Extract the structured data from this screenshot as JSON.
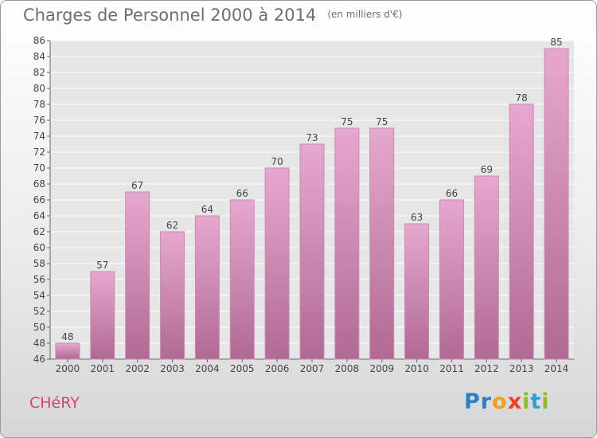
{
  "chart_data": {
    "type": "bar",
    "title": "Charges de Personnel 2000 à 2014",
    "subtitle": "(en milliers d'€)",
    "categories": [
      "2000",
      "2001",
      "2002",
      "2003",
      "2004",
      "2005",
      "2006",
      "2007",
      "2008",
      "2009",
      "2010",
      "2011",
      "2012",
      "2013",
      "2014"
    ],
    "values": [
      48,
      57,
      67,
      62,
      64,
      66,
      70,
      73,
      75,
      75,
      63,
      66,
      69,
      78,
      85
    ],
    "ylim": [
      46,
      86
    ],
    "yticks": [
      46,
      48,
      50,
      52,
      54,
      56,
      58,
      60,
      62,
      64,
      66,
      68,
      70,
      72,
      74,
      76,
      78,
      80,
      82,
      84,
      86
    ],
    "grid": true,
    "bar_color_top": "#e6a8cf",
    "bar_color_bottom": "#b06a94"
  },
  "footer": {
    "commune": "CHéRY",
    "logo_letters": [
      {
        "ch": "P",
        "color": "#2f7fc4"
      },
      {
        "ch": "r",
        "color": "#2f7fc4"
      },
      {
        "ch": "o",
        "color": "#f0a020"
      },
      {
        "ch": "x",
        "color": "#e8402a"
      },
      {
        "ch": "i",
        "color": "#8dbb2c"
      },
      {
        "ch": "t",
        "color": "#2f9fd0"
      },
      {
        "ch": "i",
        "color": "#8dbb2c"
      }
    ]
  }
}
